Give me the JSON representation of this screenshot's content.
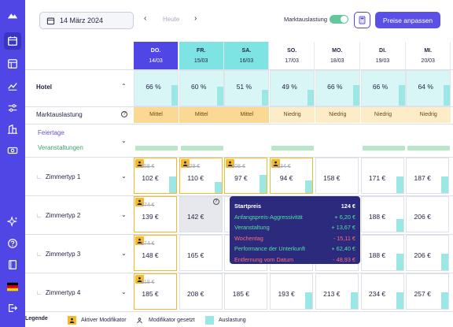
{
  "toolbar": {
    "date": "14 März 2024",
    "today_label": "Heute",
    "market_label": "Marktauslastung",
    "market_toggle_on": true,
    "apply_label": "Preise anpassen",
    "accent_color": "#5b50e6"
  },
  "days": [
    {
      "name": "DO.",
      "date": "14/03",
      "highlight": "selected"
    },
    {
      "name": "FR.",
      "date": "15/03",
      "highlight": "weekend"
    },
    {
      "name": "SA.",
      "date": "16/03",
      "highlight": "weekend"
    },
    {
      "name": "SO.",
      "date": "17/03",
      "highlight": "none"
    },
    {
      "name": "MO.",
      "date": "18/03",
      "highlight": "none"
    },
    {
      "name": "DI.",
      "date": "19/03",
      "highlight": "none"
    },
    {
      "name": "MI.",
      "date": "20/03",
      "highlight": "none"
    }
  ],
  "hotel": {
    "label": "Hotel",
    "occupancy": [
      "66 %",
      "60 %",
      "51 %",
      "49 %",
      "66 %",
      "66 %",
      "64 %"
    ],
    "occupancy_level": [
      0.66,
      0.6,
      0.51,
      0.49,
      0.66,
      0.66,
      0.64
    ]
  },
  "market": {
    "label": "Marktauslastung",
    "values": [
      "Mittel",
      "Mittel",
      "Mittel",
      "Niedrig",
      "Niedrig",
      "Niedrig",
      "Niedrig"
    ]
  },
  "events": {
    "holidays_label": "Feiertage",
    "events_label": "Veranstaltungen",
    "event_days": [
      true,
      true,
      false,
      true,
      false,
      true,
      true
    ]
  },
  "rooms": [
    {
      "label": "Zimmertyp 1",
      "cells": [
        {
          "old": "158 €",
          "price": "102 €",
          "active": true,
          "occ": 0.45
        },
        {
          "old": "129 €",
          "price": "110 €",
          "active": true,
          "occ": 0.3
        },
        {
          "old": "108 €",
          "price": "97 €",
          "active": true,
          "occ": 0.5
        },
        {
          "old": "134 €",
          "price": "94 €",
          "active": true,
          "occ": 0.35
        },
        {
          "old": "",
          "price": "158 €",
          "active": false,
          "occ": 0.0
        },
        {
          "old": "",
          "price": "171 €",
          "active": false,
          "occ": 0.45
        },
        {
          "old": "",
          "price": "187 €",
          "active": false,
          "occ": 0.45
        }
      ]
    },
    {
      "label": "Zimmertyp 2",
      "cells": [
        {
          "old": "174 €",
          "price": "139 €",
          "active": true,
          "occ": 0.0
        },
        {
          "old": "",
          "price": "142 €",
          "active": false,
          "occ": 0.0,
          "grey": true,
          "help": true
        },
        {
          "old": "",
          "price": "",
          "active": false,
          "occ": 0.0
        },
        {
          "old": "",
          "price": "",
          "active": false,
          "occ": 0.0
        },
        {
          "old": "",
          "price": "",
          "active": false,
          "occ": 0.0
        },
        {
          "old": "",
          "price": "188 €",
          "active": false,
          "occ": 0.35
        },
        {
          "old": "",
          "price": "206 €",
          "active": false,
          "occ": 0.0
        }
      ]
    },
    {
      "label": "Zimmertyp 3",
      "cells": [
        {
          "old": "174 €",
          "price": "148 €",
          "active": true,
          "occ": 0.0
        },
        {
          "old": "",
          "price": "165 €",
          "active": false,
          "occ": 0.0
        },
        {
          "old": "",
          "price": "",
          "active": false,
          "occ": 0.0
        },
        {
          "old": "",
          "price": "",
          "active": false,
          "occ": 0.0
        },
        {
          "old": "",
          "price": "",
          "active": false,
          "occ": 0.0
        },
        {
          "old": "",
          "price": "188 €",
          "active": false,
          "occ": 0.45
        },
        {
          "old": "",
          "price": "206 €",
          "active": false,
          "occ": 0.45
        }
      ]
    },
    {
      "label": "Zimmertyp 4",
      "cells": [
        {
          "old": "218 €",
          "price": "185 €",
          "active": true,
          "occ": 0.0
        },
        {
          "old": "",
          "price": "208 €",
          "active": false,
          "occ": 0.0
        },
        {
          "old": "",
          "price": "185 €",
          "active": false,
          "occ": 0.0
        },
        {
          "old": "",
          "price": "193 €",
          "active": false,
          "occ": 0.45
        },
        {
          "old": "",
          "price": "213 €",
          "active": false,
          "occ": 0.45
        },
        {
          "old": "",
          "price": "234 €",
          "active": false,
          "occ": 0.45
        },
        {
          "old": "",
          "price": "257 €",
          "active": false,
          "occ": 0.45
        }
      ]
    }
  ],
  "tooltip": {
    "title": "Startpreis",
    "title_value": "124 €",
    "rows": [
      {
        "label": "Anfangspreis-Aggressivität",
        "value": "+ 6,20 €",
        "color": "#4ee0a6"
      },
      {
        "label": "Veranstaltung",
        "value": "+ 13,67 €",
        "color": "#4ee0a6"
      },
      {
        "label": "Wochentag",
        "value": "- 15,11 €",
        "color": "#ff6b7a"
      },
      {
        "label": "Performance der Unterkunft",
        "value": "+ 62,40 €",
        "color": "#4ee0a6"
      },
      {
        "label": "Entfernung vom Datum",
        "value": "- 48,93 €",
        "color": "#ff6b7a"
      }
    ]
  },
  "legend": {
    "title": "Legende",
    "active_modifier": "Aktiver Modifikator",
    "set_modifier": "Modifikator gesetzt",
    "occupancy": "Auslastung"
  }
}
